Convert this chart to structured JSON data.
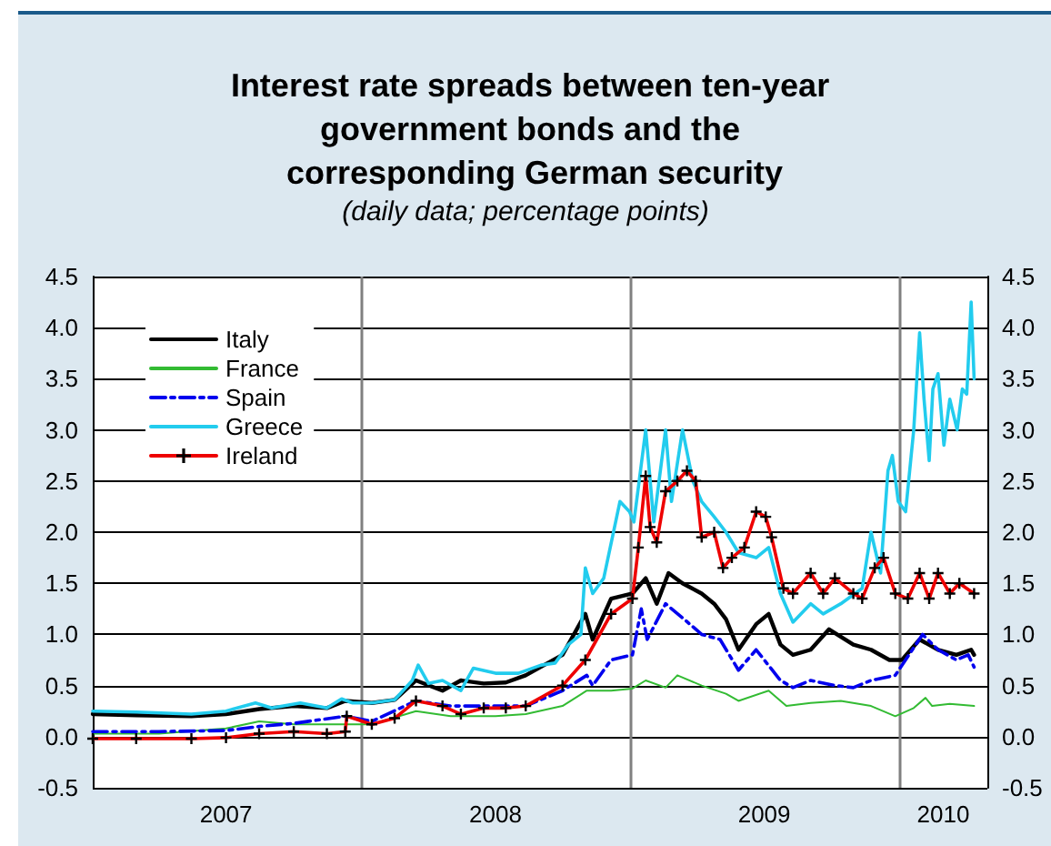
{
  "chart_data": {
    "type": "line",
    "title": "Interest rate spreads between ten-year government bonds and the corresponding German security",
    "subtitle": "(daily data; percentage points)",
    "xlim": [
      "2007-01-01",
      "2010-04-30"
    ],
    "xticks": [
      {
        "value": "2007-07-01",
        "label": "2007"
      },
      {
        "value": "2008-07-01",
        "label": "2008"
      },
      {
        "value": "2009-07-01",
        "label": "2009"
      },
      {
        "value": "2010-03-01",
        "label": "2010"
      }
    ],
    "ylim": [
      -0.5,
      4.5
    ],
    "yticks": [
      -0.5,
      {
        "value": 0,
        "label": "0.0"
      },
      0.5,
      {
        "value": 1,
        "label": "1.0"
      },
      1.5,
      {
        "value": 2,
        "label": "2.0"
      },
      2.5,
      {
        "value": 3,
        "label": "3.0"
      },
      3.5,
      {
        "value": 4,
        "label": "4.0"
      },
      4.5
    ],
    "y2lim": [
      -0.5,
      4.5
    ],
    "y2ticks": [
      -0.5,
      {
        "value": 0,
        "label": "0.0"
      },
      0.5,
      {
        "value": 1,
        "label": "1.0"
      },
      1.5,
      {
        "value": 2,
        "label": "2.0"
      },
      2.5,
      {
        "value": 3,
        "label": "3.0"
      },
      3.5,
      {
        "value": 4,
        "label": "4.0"
      },
      4.5
    ],
    "grid": "y",
    "legend": "top left",
    "ref_lines": [
      {
        "axis": "x",
        "value": "2008-01-01",
        "color": "#808080"
      },
      {
        "axis": "x",
        "value": "2009-01-01",
        "color": "#808080"
      },
      {
        "axis": "x",
        "value": "2010-01-01",
        "color": "#808080"
      }
    ],
    "series": [
      {
        "name": "Italy",
        "color": "#000000",
        "line_style": "solid",
        "marker": "none",
        "x": [
          "2007-01-01",
          "2007-03-01",
          "2007-05-15",
          "2007-07-01",
          "2007-08-15",
          "2007-10-01",
          "2007-11-15",
          "2007-12-10",
          "2008-01-15",
          "2008-02-15",
          "2008-03-15",
          "2008-04-20",
          "2008-05-15",
          "2008-06-15",
          "2008-07-15",
          "2008-08-11",
          "2008-09-30",
          "2008-10-31",
          "2008-11-10",
          "2008-12-05",
          "2009-01-03",
          "2009-01-21",
          "2009-02-05",
          "2009-02-21",
          "2009-03-12",
          "2009-04-07",
          "2009-04-24",
          "2009-05-10",
          "2009-05-27",
          "2009-06-20",
          "2009-07-07",
          "2009-07-23",
          "2009-08-09",
          "2009-09-02",
          "2009-09-27",
          "2009-10-30",
          "2009-11-23",
          "2009-12-18",
          "2010-01-04",
          "2010-01-28",
          "2010-02-22",
          "2010-03-19",
          "2010-04-08",
          "2010-04-12"
        ],
        "values": [
          0.22,
          0.21,
          0.2,
          0.22,
          0.27,
          0.3,
          0.28,
          0.35,
          0.33,
          0.36,
          0.55,
          0.45,
          0.55,
          0.52,
          0.53,
          0.6,
          0.8,
          1.2,
          0.95,
          1.35,
          1.4,
          1.55,
          1.3,
          1.6,
          1.5,
          1.4,
          1.3,
          1.15,
          0.85,
          1.1,
          1.2,
          0.9,
          0.8,
          0.85,
          1.05,
          0.9,
          0.85,
          0.75,
          0.75,
          0.95,
          0.85,
          0.8,
          0.85,
          0.8
        ]
      },
      {
        "name": "France",
        "color": "#33bb33",
        "line_style": "solid",
        "marker": "none",
        "x": [
          "2007-01-01",
          "2007-04-01",
          "2007-07-01",
          "2007-08-15",
          "2007-10-01",
          "2007-12-10",
          "2008-01-15",
          "2008-03-15",
          "2008-05-01",
          "2008-07-01",
          "2008-08-11",
          "2008-09-30",
          "2008-11-02",
          "2008-12-05",
          "2009-01-03",
          "2009-01-21",
          "2009-02-17",
          "2009-03-05",
          "2009-04-07",
          "2009-05-10",
          "2009-05-27",
          "2009-07-07",
          "2009-07-31",
          "2009-09-02",
          "2009-10-13",
          "2009-11-23",
          "2009-12-26",
          "2010-01-20",
          "2010-02-05",
          "2010-02-14",
          "2010-03-10",
          "2010-04-12"
        ],
        "values": [
          0.03,
          0.03,
          0.08,
          0.15,
          0.12,
          0.12,
          0.12,
          0.25,
          0.2,
          0.2,
          0.22,
          0.3,
          0.45,
          0.45,
          0.47,
          0.55,
          0.48,
          0.6,
          0.5,
          0.42,
          0.35,
          0.45,
          0.3,
          0.33,
          0.35,
          0.3,
          0.2,
          0.28,
          0.38,
          0.3,
          0.32,
          0.3
        ]
      },
      {
        "name": "Spain",
        "color": "#0000ee",
        "line_style": "dashed",
        "marker": "none",
        "x": [
          "2007-01-01",
          "2007-04-01",
          "2007-07-01",
          "2007-08-15",
          "2007-10-01",
          "2007-12-10",
          "2008-01-15",
          "2008-03-15",
          "2008-05-01",
          "2008-07-01",
          "2008-08-11",
          "2008-09-30",
          "2008-11-02",
          "2008-11-10",
          "2008-12-05",
          "2009-01-03",
          "2009-01-15",
          "2009-01-23",
          "2009-02-17",
          "2009-03-14",
          "2009-04-07",
          "2009-05-02",
          "2009-05-27",
          "2009-06-20",
          "2009-07-23",
          "2009-08-09",
          "2009-09-02",
          "2009-10-05",
          "2009-10-30",
          "2009-11-23",
          "2009-12-26",
          "2010-02-01",
          "2010-02-22",
          "2010-03-19",
          "2010-04-04",
          "2010-04-12"
        ],
        "values": [
          0.05,
          0.05,
          0.06,
          0.1,
          0.13,
          0.2,
          0.15,
          0.35,
          0.3,
          0.3,
          0.3,
          0.45,
          0.6,
          0.5,
          0.75,
          0.8,
          1.25,
          0.95,
          1.3,
          1.15,
          1.0,
          0.95,
          0.65,
          0.85,
          0.55,
          0.48,
          0.55,
          0.5,
          0.48,
          0.55,
          0.6,
          1.0,
          0.85,
          0.75,
          0.8,
          0.68
        ]
      },
      {
        "name": "Greece",
        "color": "#22ccee",
        "line_style": "solid",
        "marker": "none",
        "x": [
          "2007-01-01",
          "2007-03-01",
          "2007-05-15",
          "2007-07-01",
          "2007-08-10",
          "2007-09-01",
          "2007-10-10",
          "2007-11-15",
          "2007-12-05",
          "2007-12-20",
          "2008-01-15",
          "2008-02-15",
          "2008-03-10",
          "2008-03-18",
          "2008-04-01",
          "2008-04-20",
          "2008-05-15",
          "2008-06-01",
          "2008-07-01",
          "2008-08-01",
          "2008-09-01",
          "2008-09-20",
          "2008-10-08",
          "2008-10-25",
          "2008-10-31",
          "2008-11-10",
          "2008-11-25",
          "2008-12-17",
          "2008-12-30",
          "2009-01-05",
          "2009-01-21",
          "2009-02-01",
          "2009-02-17",
          "2009-02-25",
          "2009-03-12",
          "2009-03-26",
          "2009-04-07",
          "2009-04-24",
          "2009-05-10",
          "2009-05-27",
          "2009-06-20",
          "2009-07-07",
          "2009-07-23",
          "2009-08-09",
          "2009-09-02",
          "2009-09-19",
          "2009-10-13",
          "2009-11-11",
          "2009-11-23",
          "2009-12-06",
          "2009-12-16",
          "2009-12-22",
          "2009-12-30",
          "2010-01-09",
          "2010-01-20",
          "2010-01-28",
          "2010-02-03",
          "2010-02-10",
          "2010-02-15",
          "2010-02-22",
          "2010-03-02",
          "2010-03-10",
          "2010-03-20",
          "2010-03-27",
          "2010-04-02",
          "2010-04-08",
          "2010-04-12"
        ],
        "values": [
          0.25,
          0.24,
          0.22,
          0.25,
          0.33,
          0.28,
          0.33,
          0.28,
          0.37,
          0.33,
          0.33,
          0.36,
          0.55,
          0.7,
          0.52,
          0.55,
          0.45,
          0.67,
          0.62,
          0.62,
          0.7,
          0.72,
          0.9,
          1.0,
          1.65,
          1.4,
          1.55,
          2.3,
          2.2,
          2.1,
          3.0,
          2.1,
          3.0,
          2.3,
          3.0,
          2.5,
          2.3,
          2.15,
          2.0,
          1.8,
          1.75,
          1.85,
          1.4,
          1.12,
          1.3,
          1.2,
          1.3,
          1.45,
          2.0,
          1.6,
          2.6,
          2.75,
          2.3,
          2.2,
          3.0,
          3.95,
          3.3,
          2.7,
          3.4,
          3.55,
          2.85,
          3.3,
          3.0,
          3.4,
          3.35,
          4.25,
          3.5
        ]
      },
      {
        "name": "Ireland",
        "color": "#ee0000",
        "line_style": "solid",
        "marker": "cross",
        "x": [
          "2007-01-01",
          "2007-03-01",
          "2007-05-15",
          "2007-07-01",
          "2007-08-15",
          "2007-10-01",
          "2007-11-15",
          "2007-12-10",
          "2007-12-12",
          "2008-01-15",
          "2008-02-15",
          "2008-03-15",
          "2008-04-20",
          "2008-05-15",
          "2008-06-15",
          "2008-07-15",
          "2008-08-11",
          "2008-09-30",
          "2008-10-31",
          "2008-12-05",
          "2009-01-03",
          "2009-01-11",
          "2009-01-21",
          "2009-01-27",
          "2009-02-05",
          "2009-02-17",
          "2009-03-05",
          "2009-03-18",
          "2009-03-30",
          "2009-04-07",
          "2009-04-24",
          "2009-05-06",
          "2009-05-18",
          "2009-06-04",
          "2009-06-20",
          "2009-07-03",
          "2009-07-11",
          "2009-07-27",
          "2009-08-09",
          "2009-09-02",
          "2009-09-19",
          "2009-10-05",
          "2009-10-30",
          "2009-11-11",
          "2009-11-28",
          "2009-12-10",
          "2009-12-26",
          "2010-01-12",
          "2010-01-28",
          "2010-02-10",
          "2010-02-22",
          "2010-03-10",
          "2010-03-23",
          "2010-04-12"
        ],
        "values": [
          -0.02,
          -0.02,
          -0.02,
          -0.01,
          0.03,
          0.05,
          0.03,
          0.05,
          0.2,
          0.12,
          0.18,
          0.35,
          0.3,
          0.22,
          0.28,
          0.28,
          0.3,
          0.5,
          0.75,
          1.2,
          1.35,
          1.85,
          2.55,
          2.05,
          1.9,
          2.4,
          2.5,
          2.6,
          2.5,
          1.95,
          2.0,
          1.65,
          1.75,
          1.85,
          2.2,
          2.15,
          1.95,
          1.45,
          1.4,
          1.6,
          1.4,
          1.55,
          1.4,
          1.35,
          1.65,
          1.75,
          1.4,
          1.35,
          1.6,
          1.35,
          1.6,
          1.4,
          1.5,
          1.4
        ]
      }
    ]
  }
}
